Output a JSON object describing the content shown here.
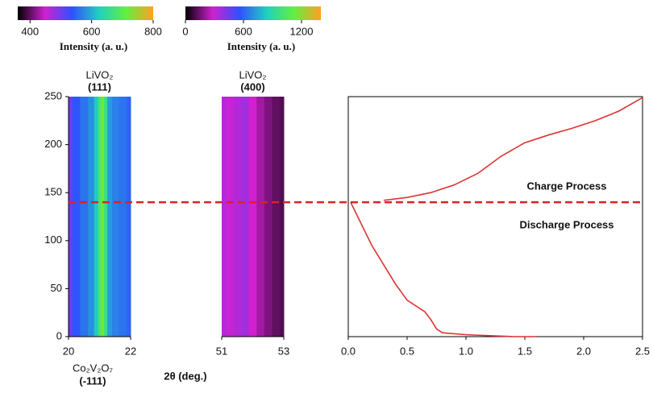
{
  "chart_data": [
    {
      "type": "heatmap",
      "colorbar_label": "Intensity (a. u.)",
      "clim": [
        360,
        800
      ],
      "cticks": [
        400,
        600,
        800
      ],
      "colormap": [
        "#000000",
        "#d020d0",
        "#3050ff",
        "#20d0c0",
        "#60f040",
        "#ffa020"
      ],
      "peak_label": [
        "LiVO₂",
        "(111)"
      ],
      "below_label": [
        "Co₂V₂O₇",
        "(-111)"
      ],
      "xlabel": "2θ (deg.)",
      "x": [
        20,
        20.25,
        20.5,
        20.75,
        20.9,
        21,
        21.1,
        21.2,
        21.3,
        21.5,
        21.75,
        22
      ],
      "intensity": [
        500,
        540,
        560,
        580,
        620,
        680,
        720,
        660,
        590,
        570,
        560,
        550
      ],
      "xlim": [
        20,
        22
      ],
      "xticks": [
        20,
        22
      ],
      "ylim": [
        0,
        250
      ],
      "yticks": [
        0,
        50,
        100,
        150,
        200,
        250
      ]
    },
    {
      "type": "heatmap",
      "colorbar_label": "Intensity (a. u.)",
      "clim": [
        0,
        1400
      ],
      "cticks": [
        0,
        600,
        1200
      ],
      "colormap": [
        "#000000",
        "#d020d0",
        "#3050ff",
        "#20d0c0",
        "#60f040",
        "#ffa020"
      ],
      "peak_label": [
        "LiVO₂",
        "(400)"
      ],
      "x": [
        51,
        51.25,
        51.5,
        51.75,
        52,
        52.25,
        52.5,
        52.75,
        53
      ],
      "intensity": [
        330,
        300,
        330,
        360,
        280,
        220,
        170,
        130,
        110
      ],
      "xlim": [
        51,
        53
      ],
      "xticks": [
        51,
        53
      ],
      "ylim": [
        0,
        250
      ]
    },
    {
      "type": "line",
      "xlim": [
        0,
        2.5
      ],
      "xticks": [
        {
          "value": 0,
          "label": "0.0"
        },
        0.5,
        {
          "value": 1,
          "label": "1.0"
        },
        1.5,
        {
          "value": 2,
          "label": "2.0"
        },
        2.5
      ],
      "ylim": [
        0,
        250
      ],
      "hline": 140,
      "annotations": [
        "Charge Process",
        "Discharge Process"
      ],
      "series": [
        {
          "color": "#e03030",
          "x": [
            0.3,
            0.5,
            0.7,
            0.9,
            1.1,
            1.3,
            1.5,
            1.7,
            1.9,
            2.1,
            2.3,
            2.5
          ],
          "values": [
            142,
            145,
            150,
            158,
            170,
            188,
            202,
            210,
            217,
            225,
            235,
            249
          ]
        },
        {
          "color": "#e03030",
          "x": [
            0.02,
            0.1,
            0.2,
            0.3,
            0.4,
            0.5,
            0.6,
            0.65,
            0.7,
            0.75,
            0.8,
            1.0,
            1.2,
            1.4,
            1.6
          ],
          "values": [
            140,
            120,
            95,
            75,
            55,
            38,
            30,
            26,
            18,
            8,
            4,
            2,
            1,
            0,
            0
          ]
        }
      ]
    }
  ]
}
